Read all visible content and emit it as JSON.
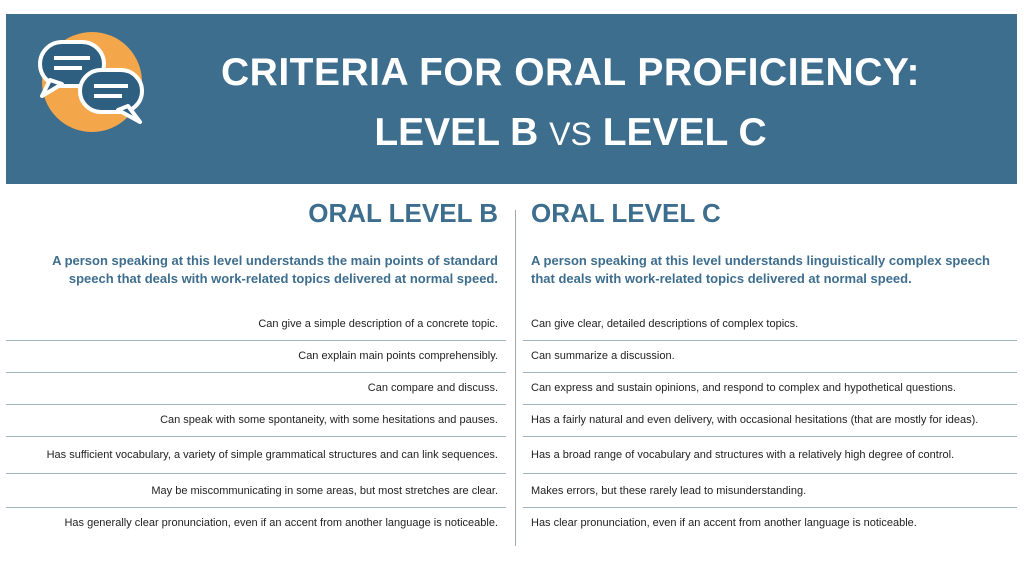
{
  "header": {
    "title_line1": "CRITERIA FOR ORAL PROFICIENCY:",
    "title_level_b": "LEVEL B",
    "title_vs": "VS",
    "title_level_c": "LEVEL C",
    "logo_icon": "speech-bubbles-icon",
    "banner_color": "#3e6e8e",
    "logo_circle_color": "#f4a64a"
  },
  "level_b": {
    "heading": "ORAL LEVEL B",
    "description": "A person speaking at this level understands the main points of standard speech that deals with work-related topics delivered at normal speed."
  },
  "level_c": {
    "heading": "ORAL LEVEL C",
    "description": "A person speaking at this level understands linguistically complex speech that deals with work-related topics delivered at normal speed."
  },
  "rows": [
    {
      "b": "Can give a simple description of a concrete topic.",
      "c": "Can give clear, detailed descriptions of complex topics."
    },
    {
      "b": "Can explain main points comprehensibly.",
      "c": "Can summarize a discussion."
    },
    {
      "b": "Can compare and discuss.",
      "c": "Can express and sustain opinions, and respond to complex and hypothetical questions."
    },
    {
      "b": "Can speak with some spontaneity, with some hesitations and pauses.",
      "c": "Has a fairly natural and even delivery, with occasional hesitations (that are mostly for ideas)."
    },
    {
      "b": "Has sufficient vocabulary, a variety of simple grammatical structures and can link sequences.",
      "c": "Has a broad range of vocabulary and structures with a relatively high degree of control."
    },
    {
      "b": "May be miscommunicating in some areas, but most stretches are clear.",
      "c": "Makes errors, but these rarely lead to misunderstanding."
    },
    {
      "b": "Has generally clear pronunciation, even if an accent from another language is noticeable.",
      "c": "Has clear pronunciation, even if an accent from another language is noticeable."
    }
  ]
}
